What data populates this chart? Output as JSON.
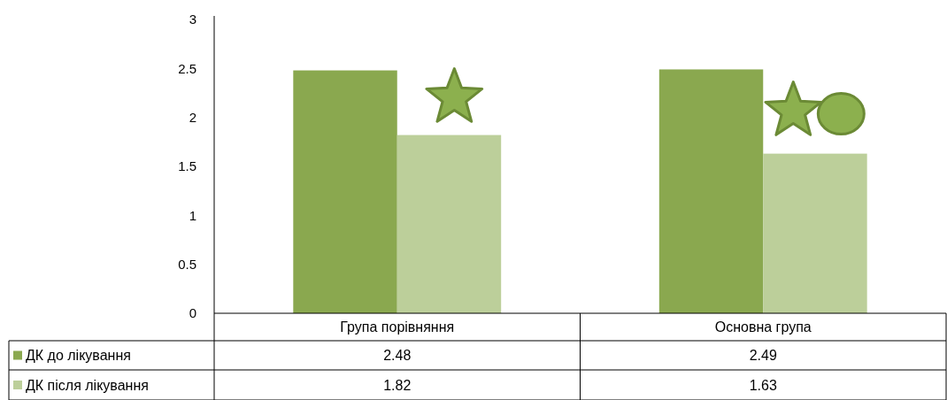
{
  "chart_data": {
    "type": "bar",
    "categories": [
      "Група порівняння",
      "Основна група"
    ],
    "series": [
      {
        "name": "ДК до лікування",
        "color": "#8aa84f",
        "values": [
          2.48,
          2.49
        ]
      },
      {
        "name": "ДК після лікування",
        "color": "#bccf9a",
        "values": [
          1.82,
          1.63
        ]
      }
    ],
    "ylim": [
      0,
      3
    ],
    "yticks": [
      0,
      0.5,
      1,
      1.5,
      2,
      2.5,
      3
    ],
    "grid": false,
    "legend": "bottom left",
    "data_labels": true
  }
}
